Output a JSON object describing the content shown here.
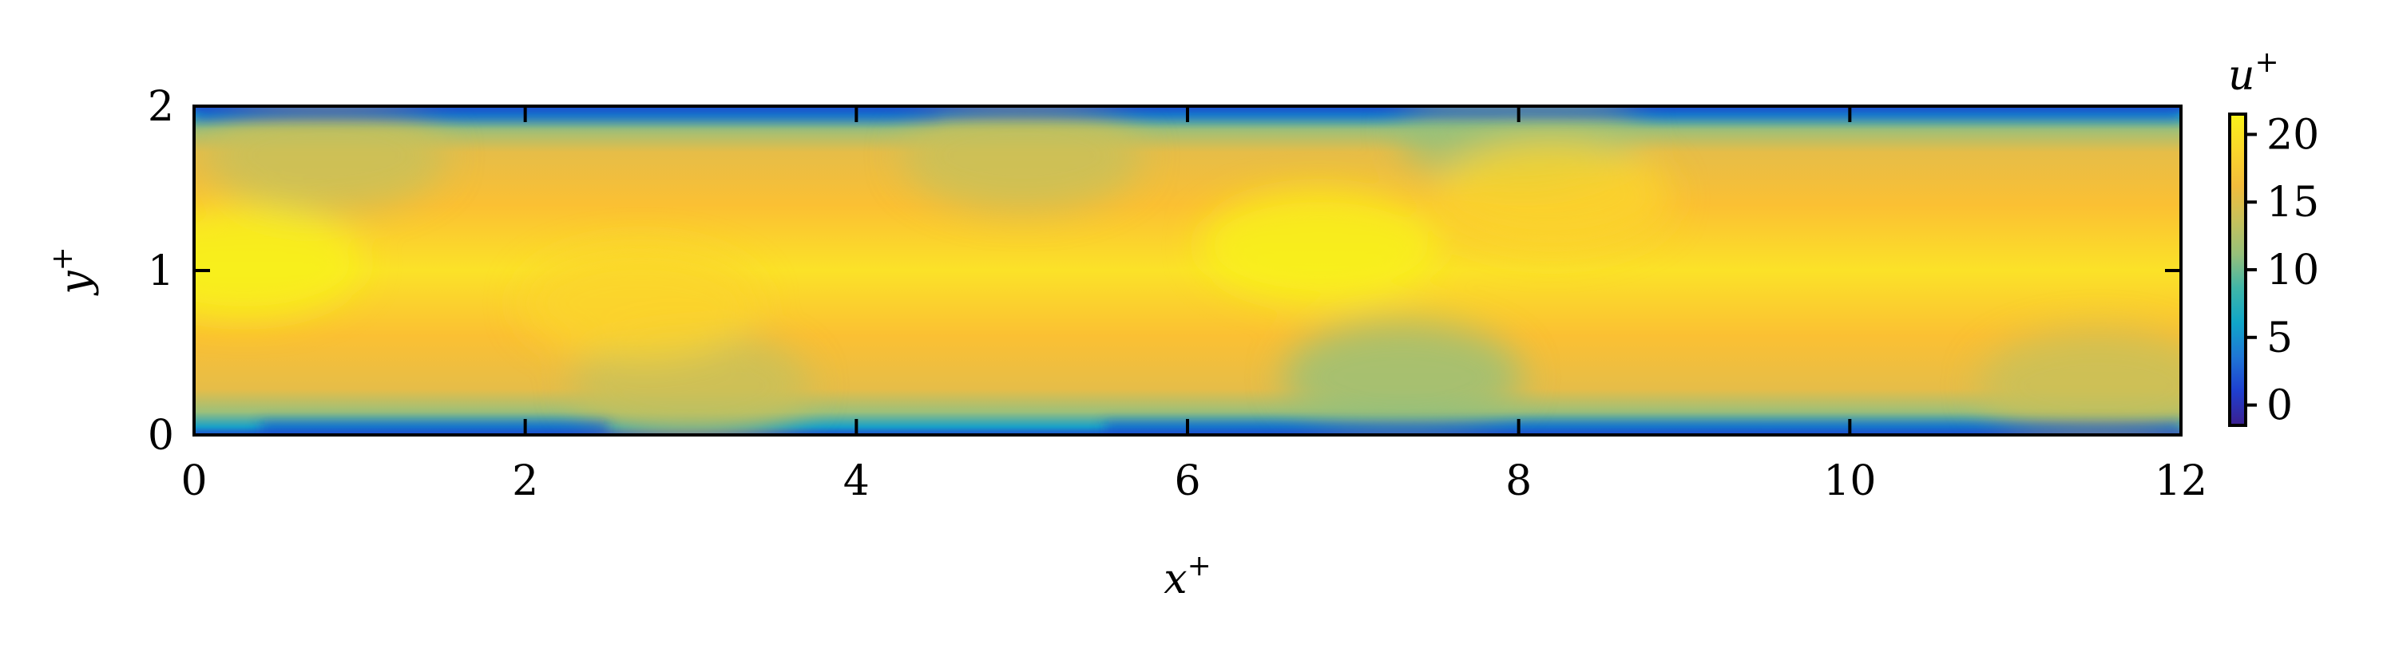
{
  "chart_data": {
    "type": "heatmap",
    "title": "",
    "xlabel": "x",
    "xlabel_sup": "+",
    "ylabel": "y",
    "ylabel_sup": "+",
    "xlim": [
      0,
      12
    ],
    "ylim": [
      0,
      2
    ],
    "xticks": [
      0,
      2,
      4,
      6,
      8,
      10,
      12
    ],
    "xtick_labels": [
      "0",
      "2",
      "4",
      "6",
      "8",
      "10",
      "12"
    ],
    "yticks": [
      0,
      1,
      2
    ],
    "ytick_labels": [
      "0",
      "1",
      "2"
    ],
    "grid": false,
    "colorbar": {
      "label": "u",
      "label_sup": "+",
      "range": [
        -1.5,
        21.5
      ],
      "ticks": [
        0,
        5,
        10,
        15,
        20
      ],
      "tick_labels": [
        "0",
        "5",
        "10",
        "15",
        "20"
      ],
      "colormap": [
        "#3b1f8f",
        "#1f3fcf",
        "#1f76d6",
        "#10a6c8",
        "#3fb6a8",
        "#96c07a",
        "#c7c15b",
        "#f2bc3c",
        "#fbd52b",
        "#f8f21a"
      ]
    },
    "field": {
      "description": "streamwise velocity field u+ over x+ in [0,12], y+ in [0,2]",
      "centerline_value": 18.5,
      "wall_value": 2,
      "low_speed_intrusions": [
        {
          "x": 7.3,
          "y": 0.35,
          "value": 11
        },
        {
          "x": 5.0,
          "y": 1.7,
          "value": 13
        },
        {
          "x": 8.0,
          "y": 1.85,
          "value": 12
        },
        {
          "x": 11.5,
          "y": 0.3,
          "value": 13
        },
        {
          "x": 0.8,
          "y": 1.7,
          "value": 14
        },
        {
          "x": 3.0,
          "y": 0.3,
          "value": 14
        }
      ],
      "high_speed_spots": [
        {
          "x": 0.3,
          "y": 1.05,
          "value": 20.5
        },
        {
          "x": 6.8,
          "y": 1.15,
          "value": 20.5
        },
        {
          "x": 8.2,
          "y": 1.45,
          "value": 20
        },
        {
          "x": 2.7,
          "y": 0.8,
          "value": 20
        }
      ]
    }
  }
}
